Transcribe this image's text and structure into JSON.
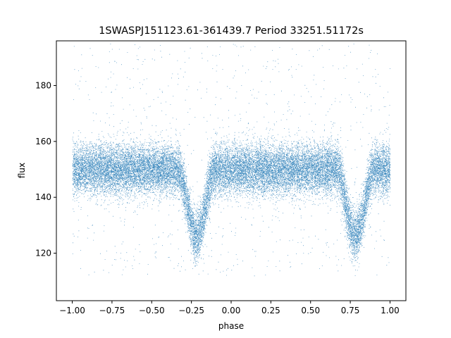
{
  "chart_data": {
    "type": "scatter",
    "title": "1SWASPJ151123.61-361439.7 Period 33251.51172s",
    "xlabel": "phase",
    "ylabel": "flux",
    "xlim": [
      -1.1,
      1.1
    ],
    "ylim": [
      103,
      196
    ],
    "xticks": [
      -1.0,
      -0.75,
      -0.5,
      -0.25,
      0.0,
      0.25,
      0.5,
      0.75,
      1.0
    ],
    "xtick_labels": [
      "−1.00",
      "−0.75",
      "−0.50",
      "−0.25",
      "0.00",
      "0.25",
      "0.50",
      "0.75",
      "1.00"
    ],
    "yticks": [
      120,
      140,
      160,
      180
    ],
    "ytick_labels": [
      "120",
      "140",
      "160",
      "180"
    ],
    "grid": false,
    "legend": "none",
    "marker_color": "#1f77b4",
    "x_range": [
      -1.0,
      1.0
    ],
    "baseline_flux": 150,
    "baseline_spread": 4.5,
    "eclipses": [
      {
        "center_phase": -0.22,
        "half_width": 0.12,
        "min_flux": 126
      },
      {
        "center_phase": 0.78,
        "half_width": 0.12,
        "min_flux": 126
      }
    ],
    "n_points": 26000
  }
}
